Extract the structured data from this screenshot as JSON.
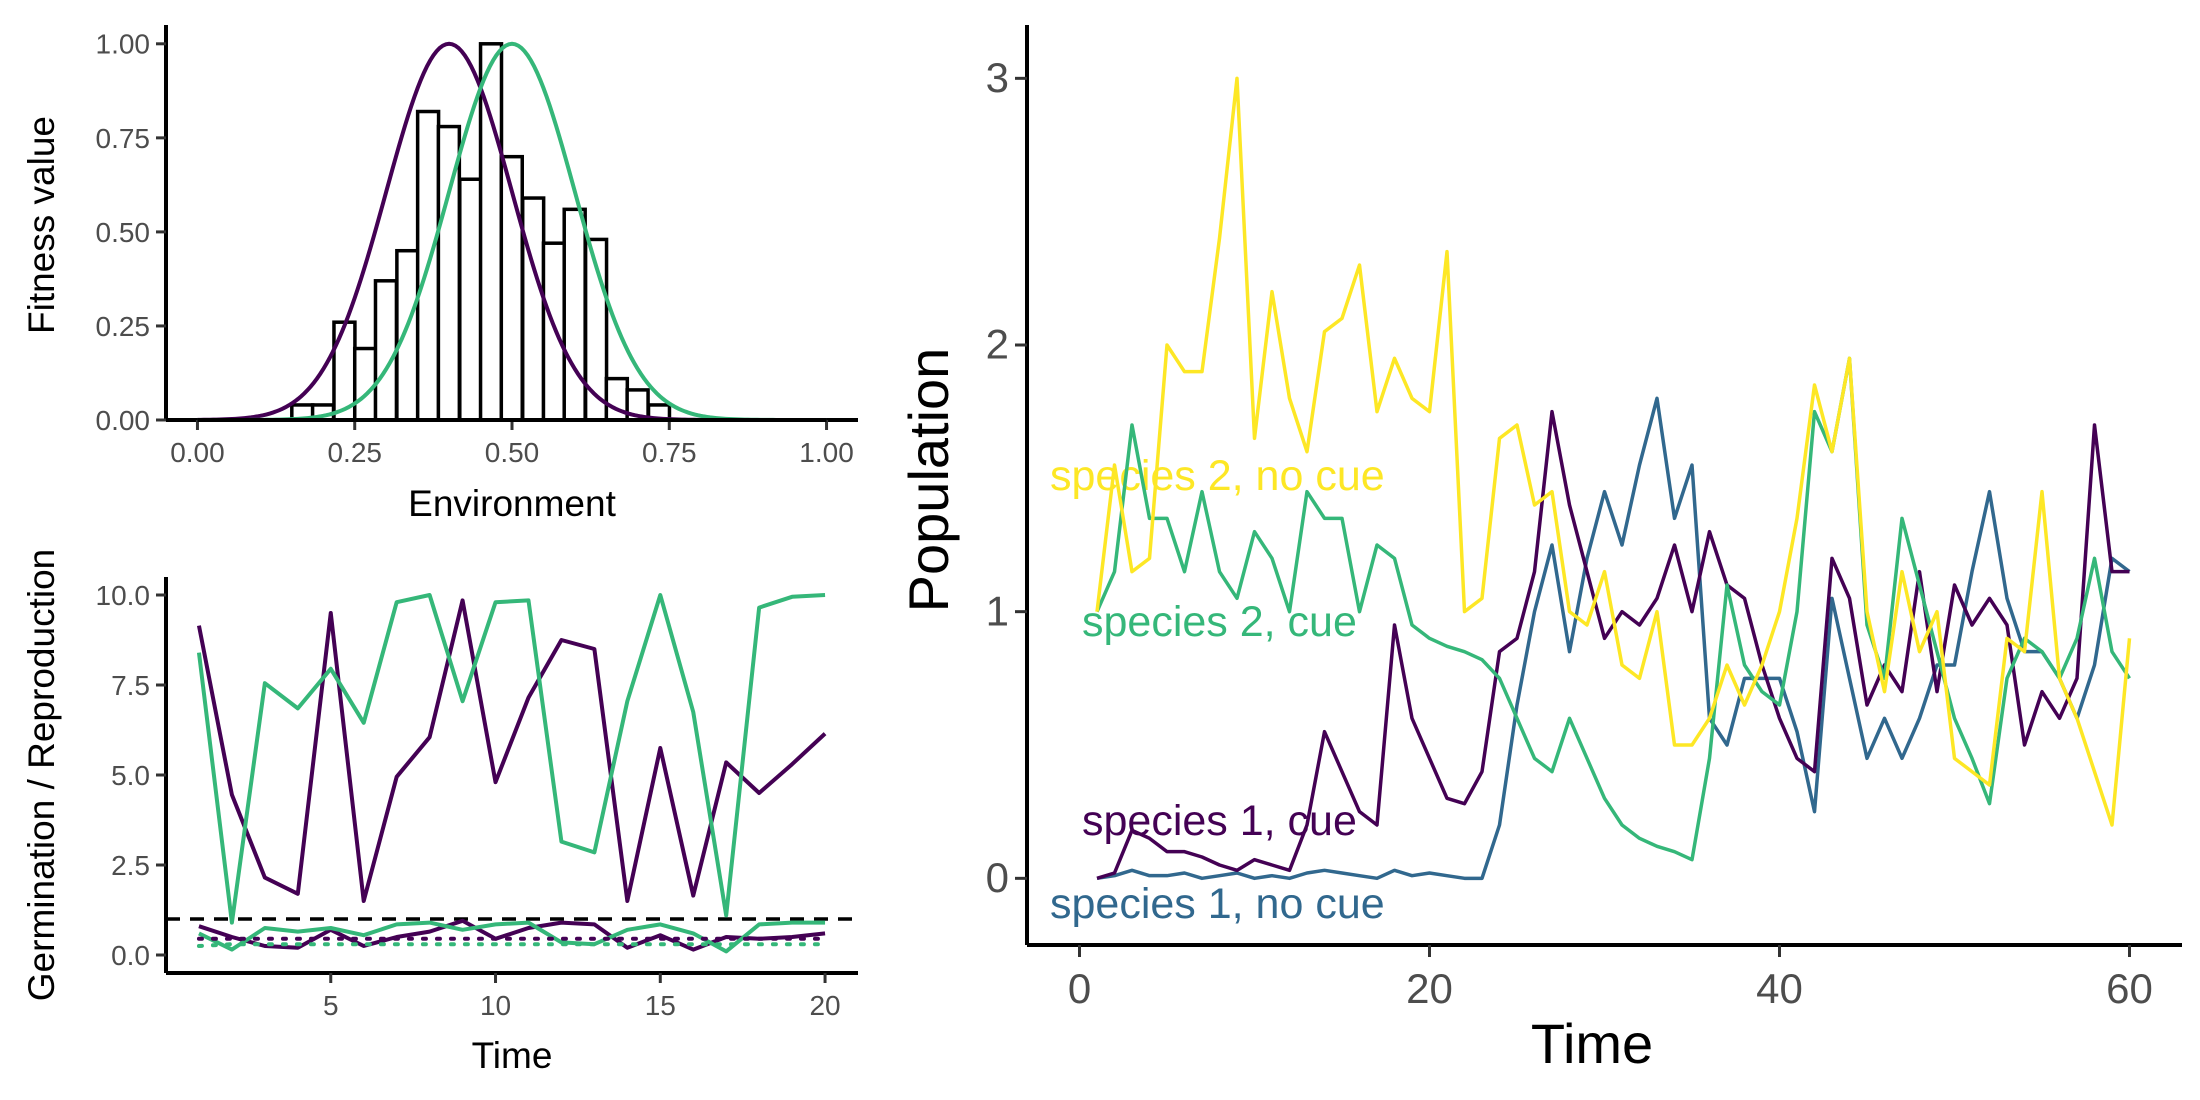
{
  "colors": {
    "sp1": "#440154",
    "sp2": "#35B779",
    "sp1_nocue": "#31688E",
    "sp2_nocue": "#FDE725",
    "hist_fill": "#ffffff",
    "hist_stroke": "#000000"
  },
  "chart_data": [
    {
      "id": "fitness",
      "type": "bar",
      "xlabel": "Environment",
      "ylabel": "Fitness value",
      "xlim": [
        -0.05,
        1.05
      ],
      "ylim": [
        0,
        1.05
      ],
      "xticks": [
        0,
        0.25,
        0.5,
        0.75,
        1.0
      ],
      "xtick_labels": [
        "0.00",
        "0.25",
        "0.50",
        "0.75",
        "1.00"
      ],
      "yticks": [
        0,
        0.25,
        0.5,
        0.75,
        1.0
      ],
      "ytick_labels": [
        "0.00",
        "0.25",
        "0.50",
        "0.75",
        "1.00"
      ],
      "histogram": {
        "bin_width": 0.0333,
        "bin_starts": [
          0.15,
          0.183,
          0.217,
          0.25,
          0.283,
          0.317,
          0.35,
          0.383,
          0.417,
          0.45,
          0.483,
          0.517,
          0.55,
          0.583,
          0.617,
          0.65,
          0.683,
          0.717
        ],
        "values": [
          0.04,
          0.04,
          0.26,
          0.19,
          0.37,
          0.45,
          0.82,
          0.78,
          0.64,
          1.0,
          0.7,
          0.59,
          0.47,
          0.56,
          0.48,
          0.11,
          0.08,
          0.04
        ]
      },
      "curves": [
        {
          "color_key": "sp1",
          "mean": 0.4,
          "sd": 0.1
        },
        {
          "color_key": "sp2",
          "mean": 0.5,
          "sd": 0.1
        }
      ]
    },
    {
      "id": "germination",
      "type": "line",
      "xlabel": "Time",
      "ylabel": "Germination / Reproduction",
      "xlim": [
        0,
        21
      ],
      "ylim": [
        -0.5,
        10.5
      ],
      "xticks": [
        5,
        10,
        15,
        20
      ],
      "xtick_labels": [
        "5",
        "10",
        "15",
        "20"
      ],
      "yticks": [
        0,
        2.5,
        5,
        7.5,
        10
      ],
      "ytick_labels": [
        "0.0",
        "2.5",
        "5.0",
        "7.5",
        "10.0"
      ],
      "hline": 1.0,
      "x": [
        1,
        2,
        3,
        4,
        5,
        6,
        7,
        8,
        9,
        10,
        11,
        12,
        13,
        14,
        15,
        16,
        17,
        18,
        19,
        20
      ],
      "series": [
        {
          "color_key": "sp1",
          "style": "solid",
          "values": [
            9.15,
            4.45,
            2.15,
            1.7,
            9.5,
            1.5,
            4.95,
            6.05,
            9.85,
            4.8,
            7.15,
            8.75,
            8.5,
            1.5,
            5.75,
            1.65,
            5.35,
            4.5,
            5.3,
            6.15
          ]
        },
        {
          "color_key": "sp2",
          "style": "solid",
          "values": [
            8.4,
            0.9,
            7.55,
            6.85,
            7.95,
            6.45,
            9.8,
            10.0,
            7.05,
            9.8,
            9.85,
            3.15,
            2.85,
            7.05,
            10.0,
            6.75,
            1.1,
            9.65,
            9.95,
            10.0
          ]
        },
        {
          "color_key": "sp1",
          "style": "solid",
          "values": [
            0.8,
            0.5,
            0.25,
            0.2,
            0.7,
            0.25,
            0.5,
            0.65,
            0.95,
            0.45,
            0.75,
            0.9,
            0.85,
            0.2,
            0.55,
            0.15,
            0.5,
            0.45,
            0.5,
            0.6
          ]
        },
        {
          "color_key": "sp2",
          "style": "solid",
          "values": [
            0.6,
            0.15,
            0.75,
            0.65,
            0.75,
            0.55,
            0.85,
            0.9,
            0.7,
            0.85,
            0.9,
            0.35,
            0.3,
            0.7,
            0.85,
            0.6,
            0.1,
            0.85,
            0.9,
            0.9
          ]
        },
        {
          "color_key": "sp1",
          "style": "dotted",
          "values": [
            0.45,
            0.45,
            0.45,
            0.45,
            0.45,
            0.45,
            0.45,
            0.45,
            0.45,
            0.45,
            0.45,
            0.45,
            0.45,
            0.45,
            0.45,
            0.45,
            0.45,
            0.45,
            0.45,
            0.45
          ]
        },
        {
          "color_key": "sp2",
          "style": "dotted",
          "values": [
            0.25,
            0.3,
            0.3,
            0.3,
            0.3,
            0.3,
            0.3,
            0.3,
            0.3,
            0.3,
            0.3,
            0.3,
            0.3,
            0.3,
            0.3,
            0.3,
            0.3,
            0.3,
            0.3,
            0.3
          ]
        }
      ]
    },
    {
      "id": "population",
      "type": "line",
      "xlabel": "Time",
      "ylabel": "Population",
      "xlim": [
        -3,
        63
      ],
      "ylim": [
        -0.25,
        3.2
      ],
      "xticks": [
        0,
        20,
        40,
        60
      ],
      "xtick_labels": [
        "0",
        "20",
        "40",
        "60"
      ],
      "yticks": [
        0,
        1,
        2,
        3
      ],
      "ytick_labels": [
        "0",
        "1",
        "2",
        "3"
      ],
      "x": [
        1,
        2,
        3,
        4,
        5,
        6,
        7,
        8,
        9,
        10,
        11,
        12,
        13,
        14,
        15,
        16,
        17,
        18,
        19,
        20,
        21,
        22,
        23,
        24,
        25,
        26,
        27,
        28,
        29,
        30,
        31,
        32,
        33,
        34,
        35,
        36,
        37,
        38,
        39,
        40,
        41,
        42,
        43,
        44,
        45,
        46,
        47,
        48,
        49,
        50,
        51,
        52,
        53,
        54,
        55,
        56,
        57,
        58,
        59,
        60
      ],
      "series": [
        {
          "name": "species 2, no cue",
          "color_key": "sp2_nocue",
          "values": [
            1.0,
            1.55,
            1.15,
            1.2,
            2.0,
            1.9,
            1.9,
            2.4,
            3.0,
            1.65,
            2.2,
            1.8,
            1.6,
            2.05,
            2.1,
            2.3,
            1.75,
            1.95,
            1.8,
            1.75,
            2.35,
            1.0,
            1.05,
            1.65,
            1.7,
            1.4,
            1.45,
            1.0,
            0.95,
            1.15,
            0.8,
            0.75,
            1.0,
            0.5,
            0.5,
            0.6,
            0.8,
            0.65,
            0.8,
            1.0,
            1.35,
            1.85,
            1.6,
            1.95,
            1.0,
            0.7,
            1.15,
            0.85,
            1.0,
            0.45,
            0.4,
            0.35,
            0.9,
            0.85,
            1.45,
            0.75,
            0.6,
            0.4,
            0.2,
            0.9
          ]
        },
        {
          "name": "species 2, cue",
          "color_key": "sp2",
          "values": [
            1.0,
            1.15,
            1.7,
            1.35,
            1.35,
            1.15,
            1.45,
            1.15,
            1.05,
            1.3,
            1.2,
            1.0,
            1.45,
            1.35,
            1.35,
            1.0,
            1.25,
            1.2,
            0.95,
            0.9,
            0.87,
            0.85,
            0.82,
            0.75,
            0.6,
            0.45,
            0.4,
            0.6,
            0.45,
            0.3,
            0.2,
            0.15,
            0.12,
            0.1,
            0.07,
            0.45,
            1.1,
            0.8,
            0.7,
            0.65,
            1.0,
            1.75,
            1.6,
            1.95,
            0.95,
            0.75,
            1.35,
            1.1,
            0.85,
            0.6,
            0.45,
            0.28,
            0.75,
            0.9,
            0.85,
            0.75,
            0.9,
            1.2,
            0.85,
            0.75
          ]
        },
        {
          "name": "species 1, cue",
          "color_key": "sp1",
          "values": [
            0.0,
            0.02,
            0.18,
            0.15,
            0.1,
            0.1,
            0.08,
            0.05,
            0.03,
            0.07,
            0.05,
            0.03,
            0.2,
            0.55,
            0.4,
            0.25,
            0.2,
            0.95,
            0.6,
            0.45,
            0.3,
            0.28,
            0.4,
            0.85,
            0.9,
            1.15,
            1.75,
            1.4,
            1.15,
            0.9,
            1.0,
            0.95,
            1.05,
            1.25,
            1.0,
            1.3,
            1.1,
            1.05,
            0.8,
            0.6,
            0.45,
            0.4,
            1.2,
            1.05,
            0.65,
            0.8,
            0.7,
            1.15,
            0.7,
            1.1,
            0.95,
            1.05,
            0.95,
            0.5,
            0.7,
            0.6,
            0.75,
            1.7,
            1.15,
            1.15
          ]
        },
        {
          "name": "species 1, no cue",
          "color_key": "sp1_nocue",
          "values": [
            0.0,
            0.01,
            0.03,
            0.01,
            0.01,
            0.02,
            0.0,
            0.01,
            0.02,
            0.0,
            0.01,
            0.0,
            0.02,
            0.03,
            0.02,
            0.01,
            0.0,
            0.03,
            0.01,
            0.02,
            0.01,
            0.0,
            0.0,
            0.2,
            0.65,
            1.0,
            1.25,
            0.85,
            1.2,
            1.45,
            1.25,
            1.55,
            1.8,
            1.35,
            1.55,
            0.6,
            0.5,
            0.75,
            0.75,
            0.75,
            0.55,
            0.25,
            1.05,
            0.75,
            0.45,
            0.6,
            0.45,
            0.6,
            0.8,
            0.8,
            1.15,
            1.45,
            1.05,
            0.85,
            0.85,
            0.75,
            0.6,
            0.8,
            1.2,
            1.15
          ]
        }
      ]
    }
  ],
  "labels": {
    "sp2_nocue": "species 2, no cue",
    "sp2_cue": "species 2, cue",
    "sp1_cue": "species 1, cue",
    "sp1_nocue": "species 1, no cue"
  }
}
